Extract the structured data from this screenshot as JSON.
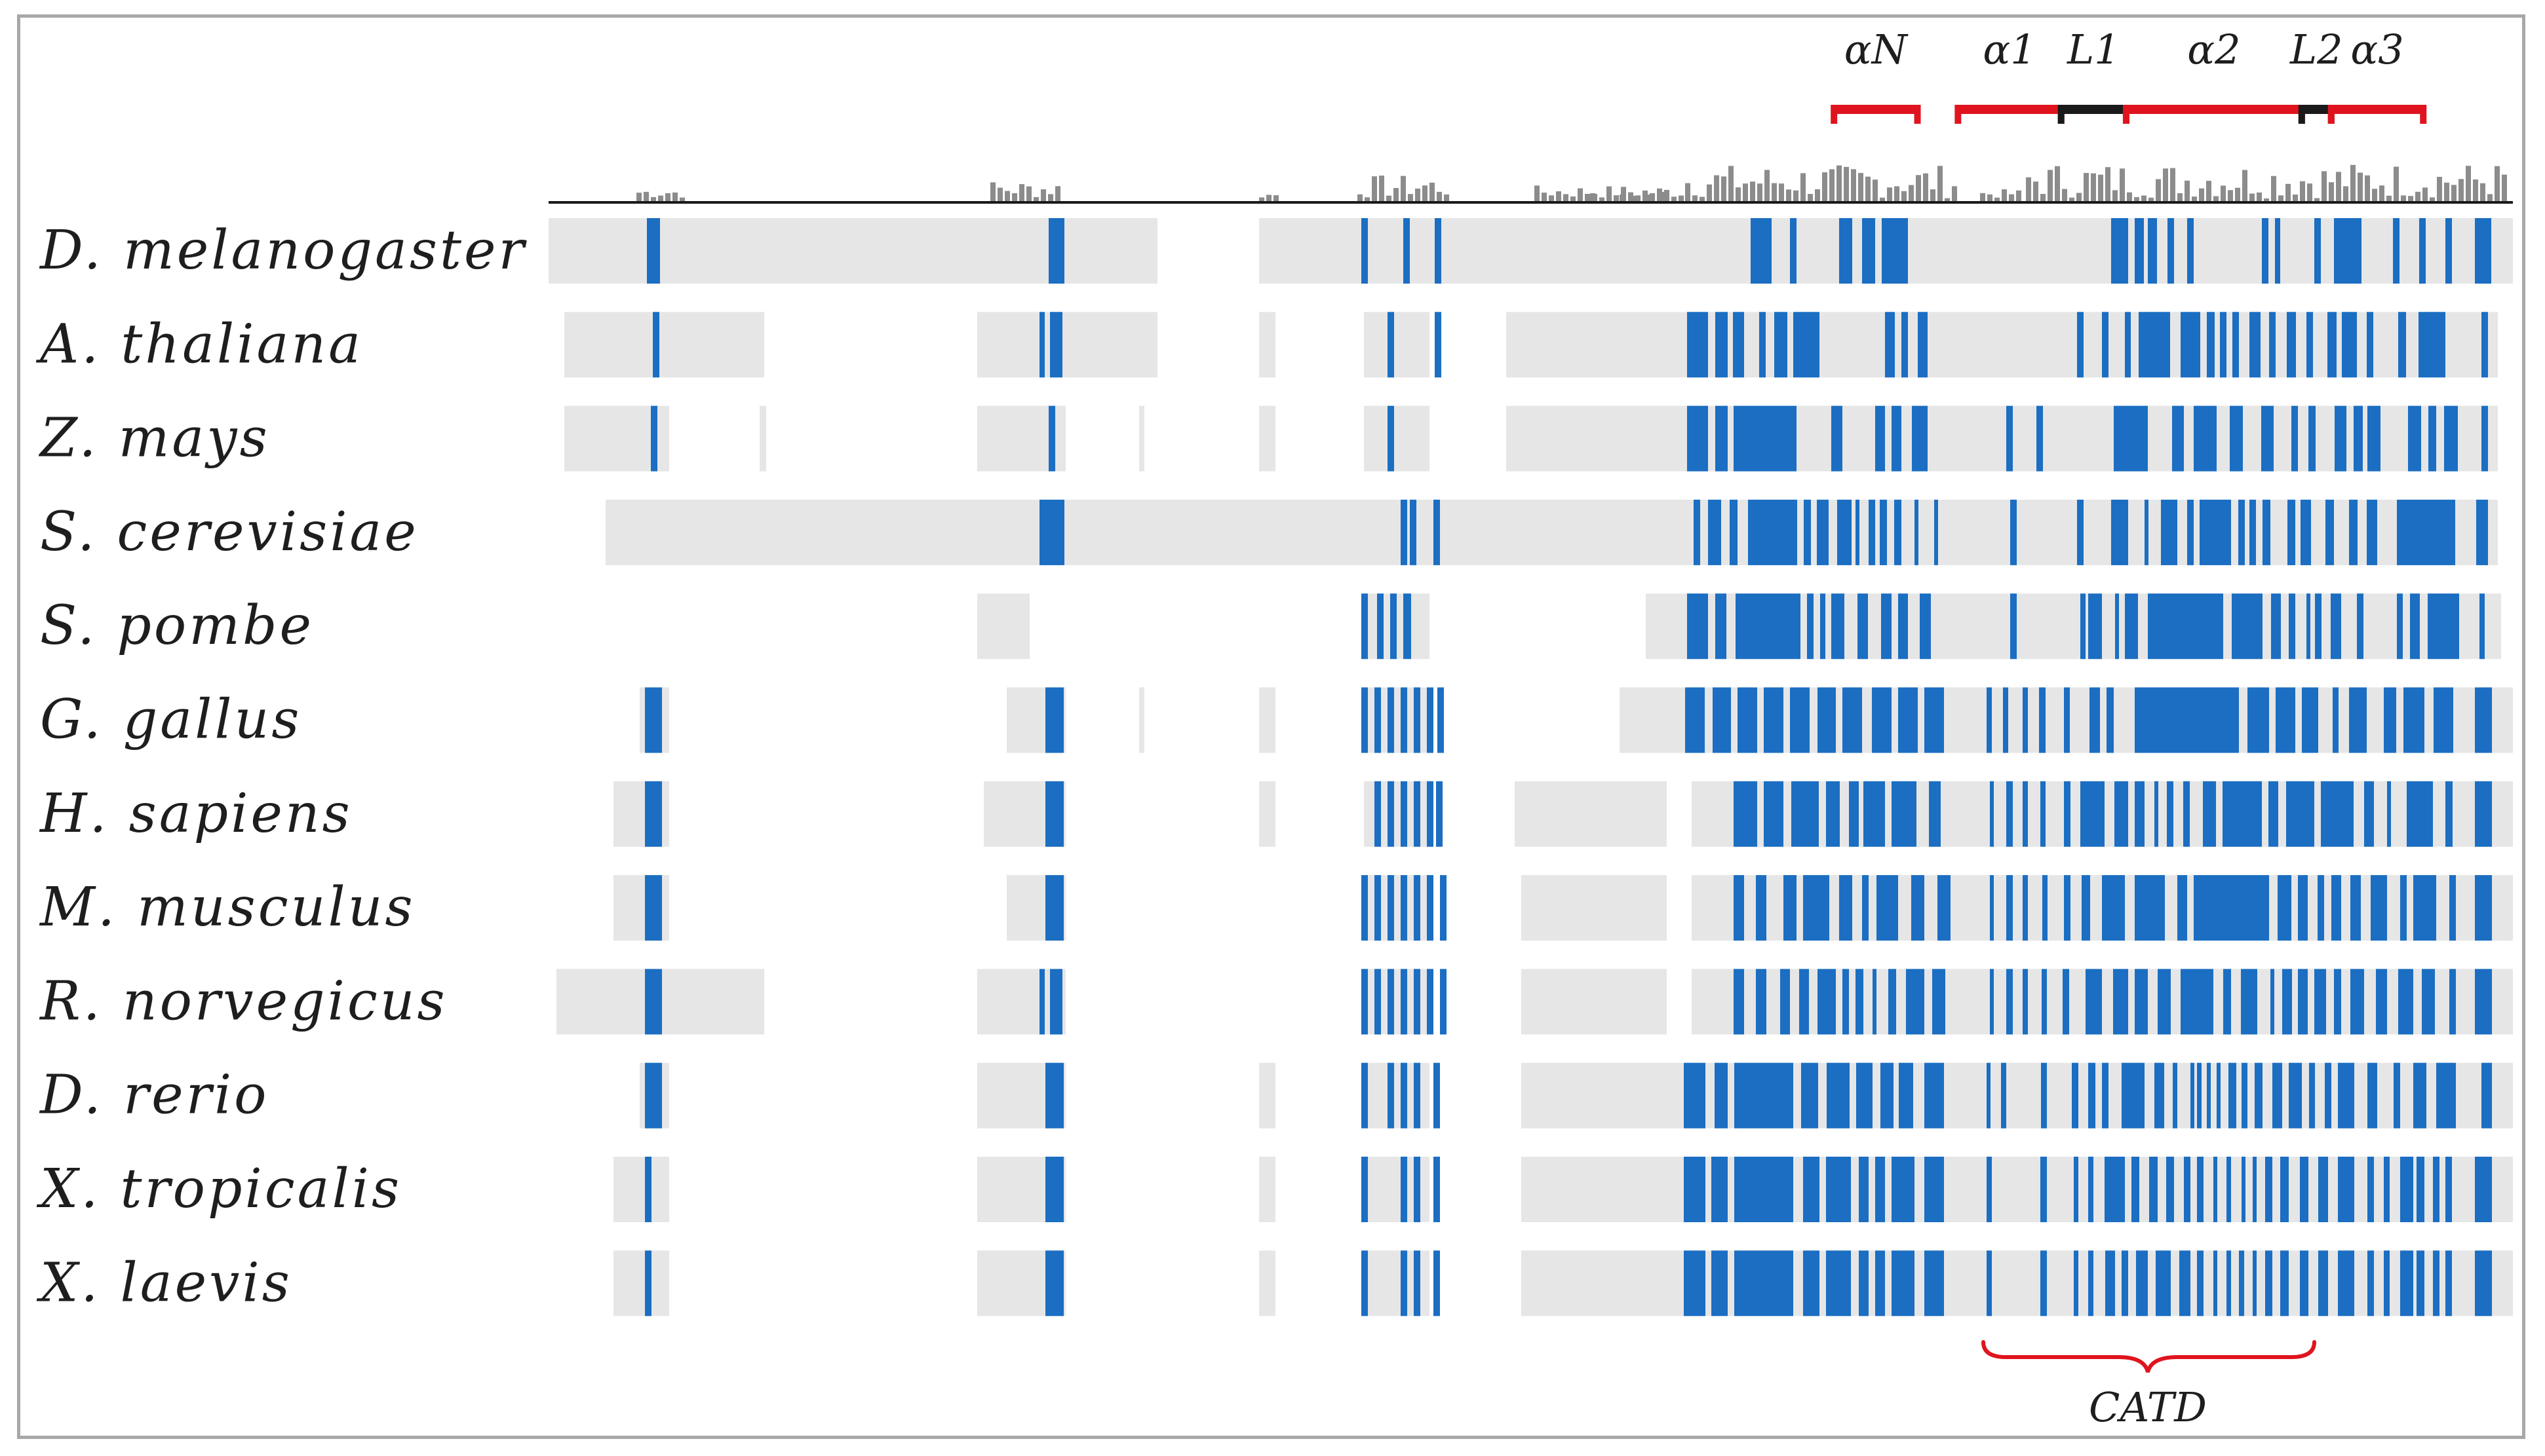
{
  "figure": {
    "species": [
      {
        "label": "D.  melanogaster"
      },
      {
        "label": "A.  thaliana"
      },
      {
        "label": "Z.  mays"
      },
      {
        "label": "S.  cerevisiae"
      },
      {
        "label": "S.  pombe"
      },
      {
        "label": "G.  gallus"
      },
      {
        "label": "H.  sapiens"
      },
      {
        "label": "M.  musculus"
      },
      {
        "label": "R.  norvegicus"
      },
      {
        "label": "D.  rerio"
      },
      {
        "label": "X.  tropicalis"
      },
      {
        "label": "X.  laevis"
      }
    ],
    "structure": [
      {
        "label": "αN",
        "kind": "helix",
        "from": 1047,
        "to": 1115
      },
      {
        "label": "α1",
        "kind": "helix",
        "from": 1148,
        "to": 1232
      },
      {
        "label": "L1",
        "kind": "loop",
        "from": 1232,
        "to": 1285
      },
      {
        "label": "α2",
        "kind": "helix",
        "from": 1285,
        "to": 1428
      },
      {
        "label": "L2",
        "kind": "loop",
        "from": 1428,
        "to": 1452
      },
      {
        "label": "α3",
        "kind": "helix",
        "from": 1452,
        "to": 1527
      }
    ],
    "domain_bracket": {
      "label": "CATD",
      "from": 1221,
      "to": 1428
    },
    "colors": {
      "conserved": "#1b6ec2",
      "aligned": "#e6e6e6",
      "helix": "#e0141e",
      "loop": "#1a1a1a",
      "histogram": "#8c8c8c",
      "baseline": "#1a1a1a",
      "bracket": "#e0141e"
    }
  }
}
